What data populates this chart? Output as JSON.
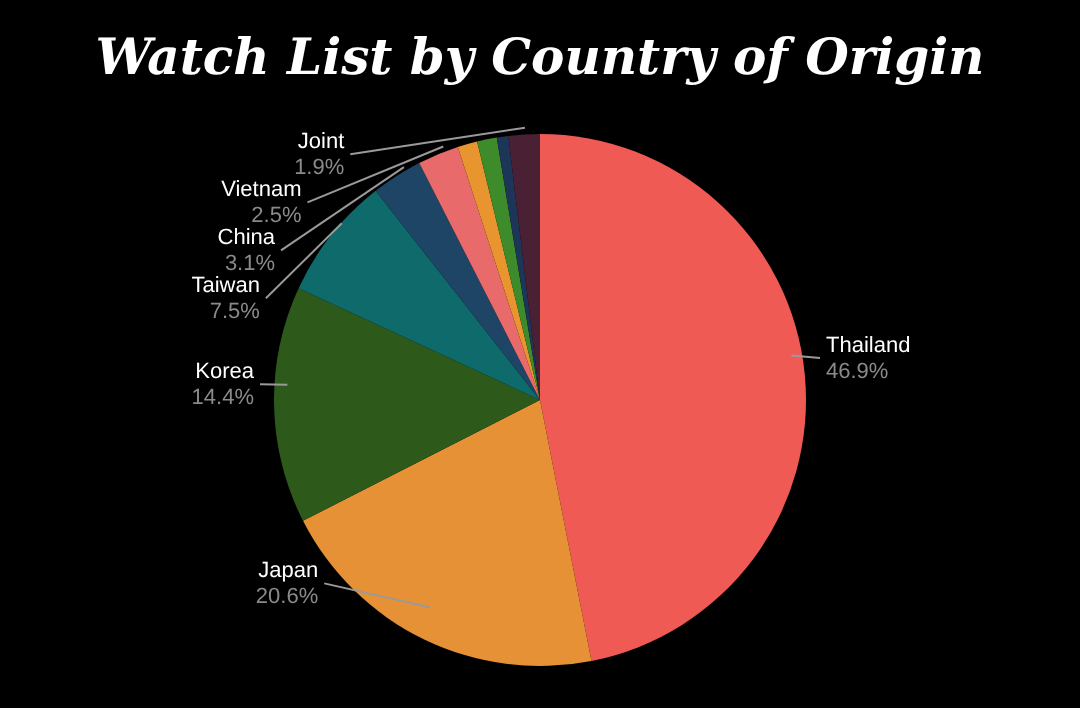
{
  "chart_data": {
    "type": "pie",
    "title": "Watch List by Country of Origin",
    "categories": [
      "Thailand",
      "Japan",
      "Korea",
      "Taiwan",
      "China",
      "Vietnam",
      null,
      null,
      null,
      "Joint"
    ],
    "values": [
      46.9,
      20.6,
      14.4,
      7.5,
      3.1,
      2.5,
      1.2,
      1.2,
      0.7,
      1.9
    ],
    "value_labels": [
      "46.9%",
      "20.6%",
      "14.4%",
      "7.5%",
      "3.1%",
      "2.5%",
      null,
      null,
      null,
      "1.9%"
    ],
    "colors": [
      "#f05a55",
      "#e69135",
      "#2d5a1b",
      "#0f6b6b",
      "#1f4566",
      "#e86a6a",
      "#e8952f",
      "#3d8b2a",
      "#1d3557",
      "#4a2035"
    ],
    "legend": false
  }
}
